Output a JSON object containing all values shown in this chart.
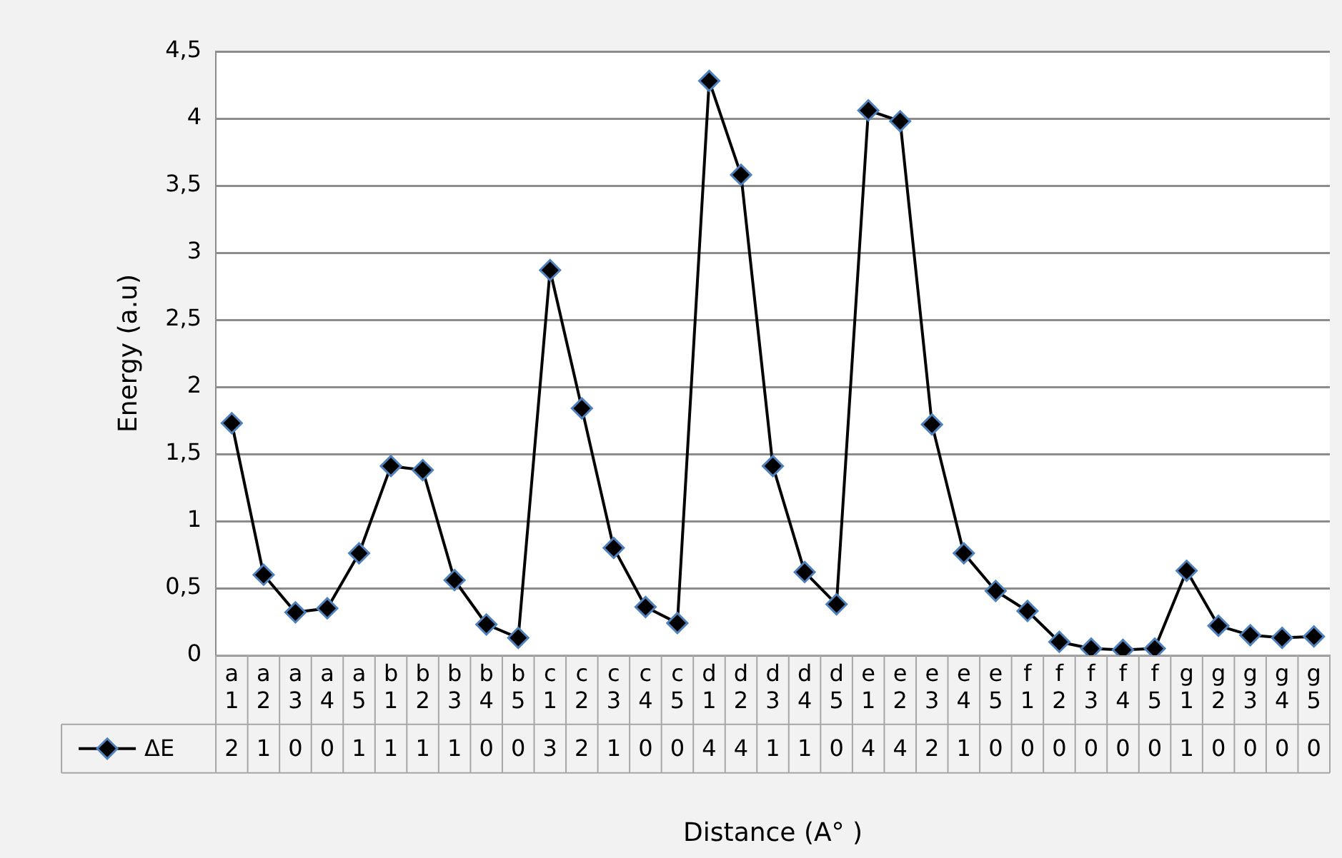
{
  "chart_data": {
    "type": "line",
    "xlabel": "Distance (A° )",
    "ylabel": "Energy (a.u)",
    "categories": [
      "a1",
      "a2",
      "a3",
      "a4",
      "a5",
      "b1",
      "b2",
      "b3",
      "b4",
      "b5",
      "c1",
      "c2",
      "c3",
      "c4",
      "c5",
      "d1",
      "d2",
      "d3",
      "d4",
      "d5",
      "e1",
      "e2",
      "e3",
      "e4",
      "e5",
      "f1",
      "f2",
      "f3",
      "f4",
      "f5",
      "g1",
      "g2",
      "g3",
      "g4",
      "g5"
    ],
    "series": [
      {
        "name": "ΔE",
        "color": "#000000",
        "values": [
          1.73,
          0.6,
          0.32,
          0.35,
          0.76,
          1.41,
          1.38,
          0.56,
          0.23,
          0.13,
          2.87,
          1.84,
          0.8,
          0.36,
          0.24,
          4.28,
          3.58,
          1.41,
          0.62,
          0.38,
          4.06,
          3.98,
          1.72,
          0.76,
          0.48,
          0.33,
          0.1,
          0.05,
          0.04,
          0.05,
          0.63,
          0.22,
          0.15,
          0.13,
          0.14
        ],
        "value_labels": [
          "2",
          "1",
          "0",
          "0",
          "1",
          "1",
          "1",
          "1",
          "0",
          "0",
          "3",
          "2",
          "1",
          "0",
          "0",
          "4",
          "4",
          "1",
          "1",
          "0",
          "4",
          "4",
          "2",
          "1",
          "0",
          "0",
          "0",
          "0",
          "0",
          "0",
          "1",
          "0",
          "0",
          "0",
          "0"
        ]
      }
    ],
    "ylim": [
      0,
      4.5
    ],
    "yticks": [
      0,
      {
        "value": 0.5,
        "label": "0,5"
      },
      1,
      {
        "value": 1.5,
        "label": "1,5"
      },
      2,
      {
        "value": 2.5,
        "label": "2,5"
      },
      3,
      {
        "value": 3.5,
        "label": "3,5"
      },
      4,
      {
        "value": 4.5,
        "label": "4,5"
      }
    ],
    "grid": "y",
    "legend": "bottom",
    "marker": "diamond",
    "line_style": "solid"
  }
}
